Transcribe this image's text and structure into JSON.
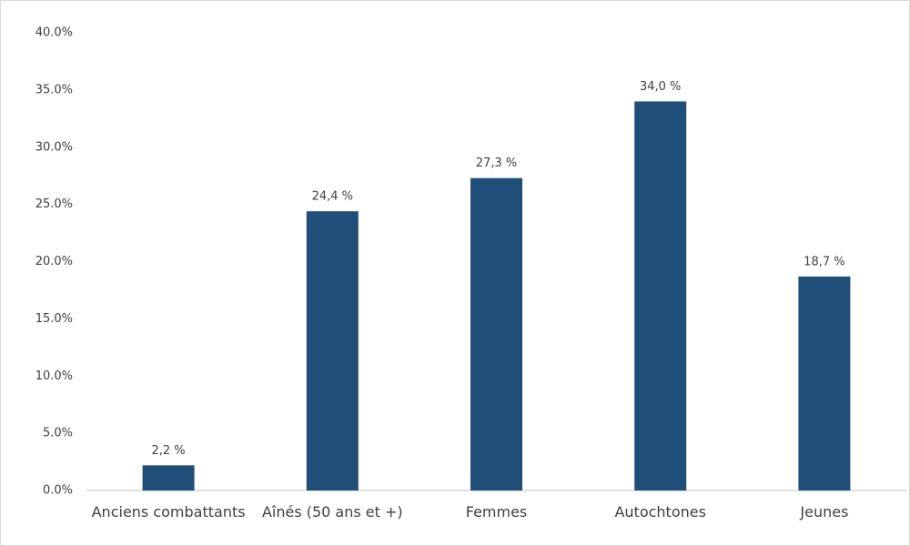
{
  "chart_data": {
    "type": "bar",
    "categories": [
      "Anciens combattants",
      "Aînés (50 ans et +)",
      "Femmes",
      "Autochtones",
      "Jeunes"
    ],
    "values": [
      2.2,
      24.4,
      27.3,
      34.0,
      18.7
    ],
    "value_labels": [
      "2,2 %",
      "24,4 %",
      "27,3 %",
      "34,0 %",
      "18,7 %"
    ],
    "color": "#1f4e79",
    "ylim": [
      0,
      40
    ],
    "yticks": [
      {
        "value": 0,
        "label": "0.0%"
      },
      {
        "value": 5,
        "label": "5.0%"
      },
      {
        "value": 10,
        "label": "10.0%"
      },
      {
        "value": 15,
        "label": "15.0%"
      },
      {
        "value": 20,
        "label": "20.0%"
      },
      {
        "value": 25,
        "label": "25.0%"
      },
      {
        "value": 30,
        "label": "30.0%"
      },
      {
        "value": 35,
        "label": "35.0%"
      },
      {
        "value": 40,
        "label": "40.0%"
      }
    ],
    "grid": false
  }
}
